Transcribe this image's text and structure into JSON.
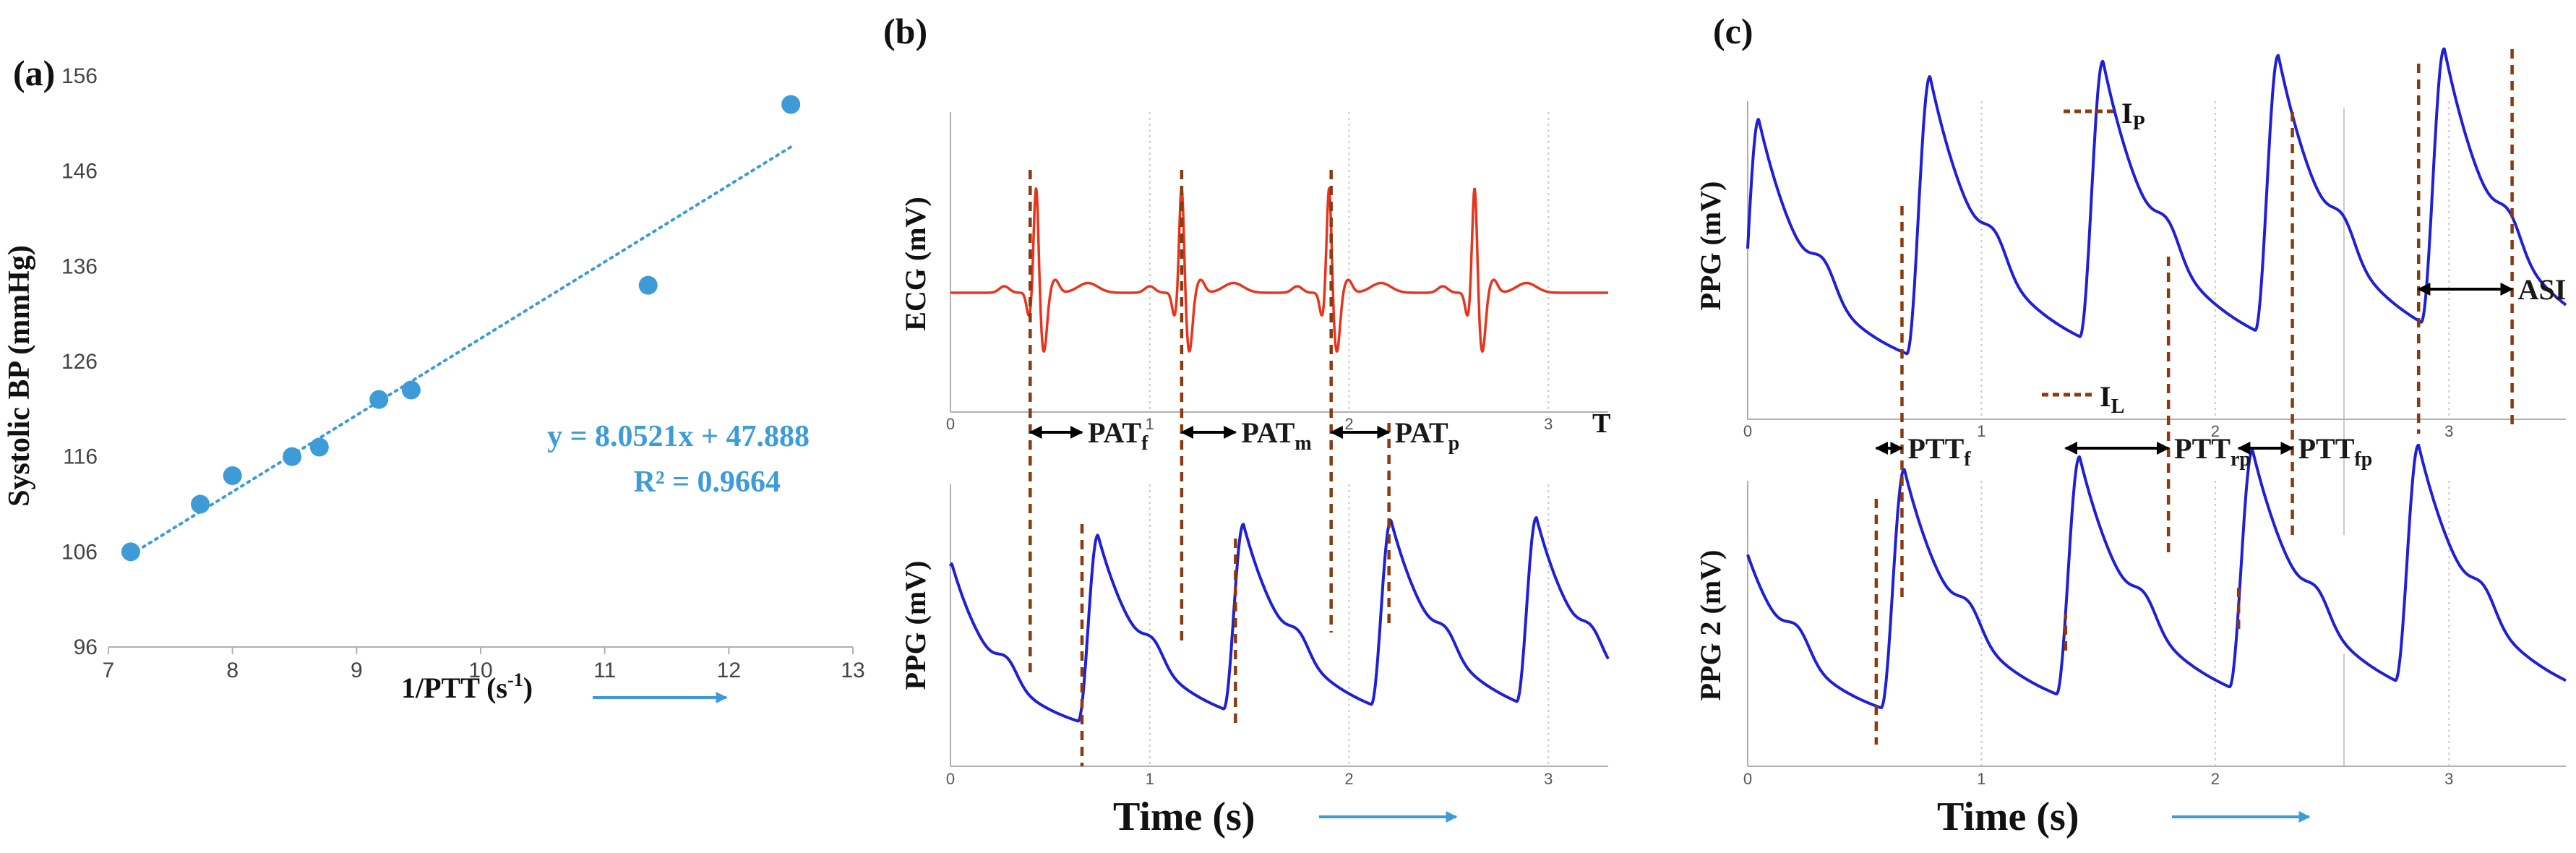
{
  "colors": {
    "scatter": "#3d9bd8",
    "ecg": "#e8341c",
    "ppg": "#1f1fd6",
    "marker": "#8b3a0e",
    "axis": "#b0b0b0",
    "grid": "#c9c9c9",
    "text": "#1a1a1a"
  },
  "panels": {
    "a": {
      "label": "(a)"
    },
    "b": {
      "label": "(b)",
      "xlabel": "Time (s)"
    },
    "c": {
      "label": "(c)",
      "xlabel": "Time (s)"
    }
  },
  "chart_data": [
    {
      "id": "a",
      "type": "scatter",
      "title": "",
      "xlabel": "1/PTT (s",
      "xlabel_sup": "-1",
      "xlabel_close": ")",
      "ylabel": "Systolic BP (mmHg)",
      "xlim": [
        7,
        13
      ],
      "ylim": [
        96,
        156
      ],
      "xticks": [
        "7",
        "8",
        "9",
        "10",
        "11",
        "12",
        "13"
      ],
      "yticks": [
        "96",
        "106",
        "116",
        "126",
        "136",
        "146",
        "156"
      ],
      "points": [
        {
          "x": 7.18,
          "y": 106
        },
        {
          "x": 7.74,
          "y": 111
        },
        {
          "x": 8.0,
          "y": 114
        },
        {
          "x": 8.48,
          "y": 116
        },
        {
          "x": 8.7,
          "y": 117
        },
        {
          "x": 9.18,
          "y": 122
        },
        {
          "x": 9.44,
          "y": 123
        },
        {
          "x": 11.35,
          "y": 134
        },
        {
          "x": 12.5,
          "y": 153
        }
      ],
      "trendline": {
        "slope": 8.0521,
        "intercept": 47.888,
        "x_range": [
          7.18,
          12.5
        ]
      },
      "equation": "y = 8.0521x + 47.888",
      "r_squared": "R² = 0.9664"
    },
    {
      "id": "b",
      "type": "line",
      "xlabel": "Time (s)",
      "xlim": [
        0,
        3.3
      ],
      "xticks": [
        "0",
        "1",
        "2",
        "3"
      ],
      "series": [
        {
          "name": "ECG (mV)",
          "ylabel": "ECG (mV)",
          "beats_s": [
            0.43,
            1.16,
            1.9,
            2.63
          ]
        },
        {
          "name": "PPG (mV)",
          "ylabel": "PPG (mV)",
          "peaks_s": [
            0.74,
            1.47,
            2.21,
            2.94
          ]
        }
      ],
      "intervals": [
        {
          "label": "PAT",
          "sub": "f",
          "from_s": 0.4,
          "to_s": 0.66
        },
        {
          "label": "PAT",
          "sub": "m",
          "from_s": 1.16,
          "to_s": 1.43
        },
        {
          "label": "PAT",
          "sub": "p",
          "from_s": 1.91,
          "to_s": 2.2
        }
      ],
      "annotations": [
        "T"
      ]
    },
    {
      "id": "c",
      "type": "line",
      "xlabel": "Time (s)",
      "xlim": [
        0,
        3.5
      ],
      "xticks": [
        "0",
        "1",
        "2",
        "3"
      ],
      "series": [
        {
          "name": "PPG (mV)",
          "ylabel": "PPG (mV)",
          "peaks_s": [
            0.78,
            1.52,
            2.27,
            2.98
          ]
        },
        {
          "name": "PPG 2 (mV)",
          "ylabel": "PPG 2 (mV)",
          "peaks_s": [
            0.67,
            1.42,
            2.16,
            2.87
          ]
        }
      ],
      "intervals": [
        {
          "label": "PTT",
          "sub": "f",
          "from_s": 0.55,
          "to_s": 0.66
        },
        {
          "label": "PTT",
          "sub": "rp",
          "from_s": 1.36,
          "to_s": 1.8
        },
        {
          "label": "PTT",
          "sub": "fp",
          "from_s": 2.1,
          "to_s": 2.33
        },
        {
          "label": "ASI",
          "sub": "",
          "from_s": 2.87,
          "to_s": 3.27
        }
      ],
      "annotations": [
        {
          "label": "I",
          "sub": "P"
        },
        {
          "label": "I",
          "sub": "L"
        }
      ]
    }
  ]
}
